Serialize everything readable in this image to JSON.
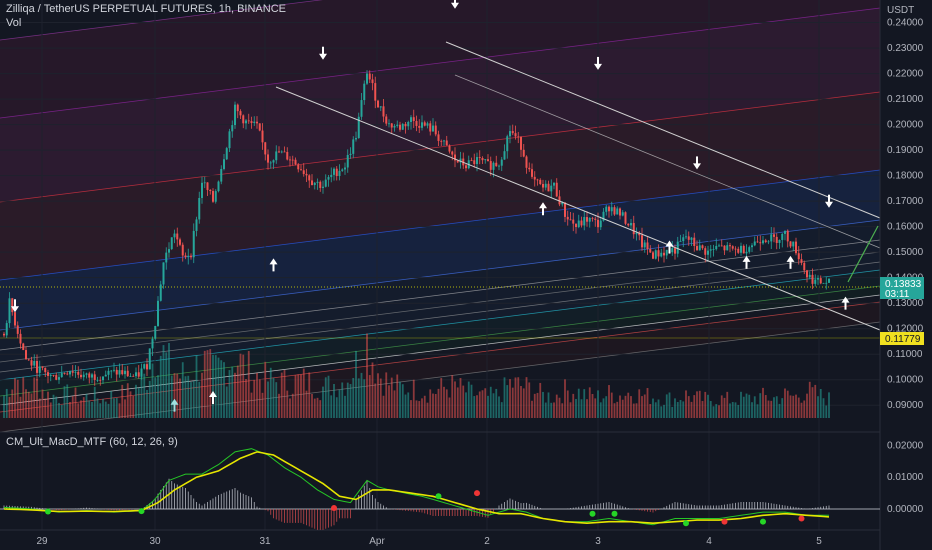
{
  "header": {
    "title": "Zilliqa / TetherUS PERPETUAL FUTURES, 1h, BINANCE",
    "vol_label": "Vol",
    "indicator_label": "CM_Ult_MacD_MTF (60, 12, 26, 9)"
  },
  "price_axis": {
    "currency": "USDT",
    "ticks": [
      "0.24000",
      "0.23000",
      "0.22000",
      "0.21000",
      "0.20000",
      "0.19000",
      "0.18000",
      "0.17000",
      "0.16000",
      "0.15000",
      "0.14000",
      "0.13000",
      "0.12000",
      "0.11000",
      "0.10000",
      "0.09000"
    ],
    "current_price": "0.13833",
    "countdown": "03:11",
    "marked_price": "0.11779"
  },
  "macd_axis": {
    "ticks": [
      "0.02000",
      "0.01000",
      "0.00000"
    ]
  },
  "time_axis": {
    "labels": [
      "29",
      "30",
      "31",
      "Apr",
      "2",
      "3",
      "4",
      "5"
    ]
  },
  "colors": {
    "background": "#131722",
    "up": "#26a69a",
    "down": "#ef5350",
    "macd": "#26c626",
    "signal": "#e6e600",
    "current_price_bg": "#26a69a",
    "marked_price_bg": "#f0e020"
  },
  "chart_data": {
    "type": "candlestick",
    "x_labels": [
      "29",
      "30",
      "31",
      "Apr",
      "2",
      "3",
      "4",
      "5"
    ],
    "y_range": [
      0.085,
      0.241
    ],
    "price_path": [
      [
        0,
        0.118
      ],
      [
        2,
        0.13
      ],
      [
        8,
        0.108
      ],
      [
        14,
        0.103
      ],
      [
        18,
        0.101
      ],
      [
        24,
        0.104
      ],
      [
        30,
        0.101
      ],
      [
        36,
        0.102
      ],
      [
        42,
        0.103
      ],
      [
        48,
        0.101
      ],
      [
        52,
        0.106
      ],
      [
        55,
        0.123
      ],
      [
        58,
        0.146
      ],
      [
        62,
        0.158
      ],
      [
        65,
        0.148
      ],
      [
        68,
        0.15
      ],
      [
        72,
        0.178
      ],
      [
        76,
        0.17
      ],
      [
        80,
        0.188
      ],
      [
        84,
        0.206
      ],
      [
        88,
        0.201
      ],
      [
        92,
        0.199
      ],
      [
        96,
        0.186
      ],
      [
        100,
        0.189
      ],
      [
        104,
        0.187
      ],
      [
        108,
        0.183
      ],
      [
        112,
        0.178
      ],
      [
        116,
        0.176
      ],
      [
        120,
        0.181
      ],
      [
        124,
        0.184
      ],
      [
        128,
        0.196
      ],
      [
        132,
        0.221
      ],
      [
        136,
        0.208
      ],
      [
        140,
        0.2
      ],
      [
        144,
        0.199
      ],
      [
        148,
        0.202
      ],
      [
        152,
        0.2
      ],
      [
        156,
        0.198
      ],
      [
        160,
        0.192
      ],
      [
        164,
        0.186
      ],
      [
        168,
        0.184
      ],
      [
        172,
        0.186
      ],
      [
        176,
        0.184
      ],
      [
        180,
        0.185
      ],
      [
        184,
        0.198
      ],
      [
        188,
        0.192
      ],
      [
        192,
        0.178
      ],
      [
        196,
        0.175
      ],
      [
        200,
        0.176
      ],
      [
        204,
        0.165
      ],
      [
        208,
        0.16
      ],
      [
        212,
        0.163
      ],
      [
        216,
        0.161
      ],
      [
        220,
        0.168
      ],
      [
        224,
        0.165
      ],
      [
        228,
        0.16
      ],
      [
        232,
        0.153
      ],
      [
        236,
        0.149
      ],
      [
        240,
        0.15
      ],
      [
        244,
        0.151
      ],
      [
        248,
        0.156
      ],
      [
        252,
        0.152
      ],
      [
        256,
        0.15
      ],
      [
        260,
        0.152
      ],
      [
        264,
        0.151
      ],
      [
        268,
        0.151
      ],
      [
        272,
        0.153
      ],
      [
        276,
        0.156
      ],
      [
        280,
        0.155
      ],
      [
        284,
        0.157
      ],
      [
        288,
        0.151
      ],
      [
        292,
        0.141
      ],
      [
        296,
        0.138
      ],
      [
        300,
        0.13833
      ]
    ],
    "volume_path": [
      [
        0,
        0.3
      ],
      [
        4,
        0.55
      ],
      [
        8,
        0.35
      ],
      [
        12,
        0.45
      ],
      [
        16,
        0.3
      ],
      [
        20,
        0.28
      ],
      [
        24,
        0.32
      ],
      [
        28,
        0.25
      ],
      [
        32,
        0.3
      ],
      [
        36,
        0.24
      ],
      [
        40,
        0.3
      ],
      [
        44,
        0.32
      ],
      [
        48,
        0.4
      ],
      [
        52,
        0.55
      ],
      [
        56,
        0.95
      ],
      [
        60,
        0.7
      ],
      [
        64,
        0.55
      ],
      [
        68,
        0.6
      ],
      [
        72,
        0.75
      ],
      [
        76,
        0.6
      ],
      [
        80,
        0.7
      ],
      [
        84,
        0.8
      ],
      [
        88,
        0.65
      ],
      [
        92,
        0.55
      ],
      [
        96,
        0.5
      ],
      [
        100,
        0.48
      ],
      [
        104,
        0.45
      ],
      [
        108,
        0.5
      ],
      [
        112,
        0.45
      ],
      [
        116,
        0.4
      ],
      [
        120,
        0.45
      ],
      [
        124,
        0.48
      ],
      [
        128,
        0.7
      ],
      [
        132,
        1.0
      ],
      [
        136,
        0.6
      ],
      [
        140,
        0.45
      ],
      [
        144,
        0.4
      ],
      [
        148,
        0.38
      ],
      [
        152,
        0.36
      ],
      [
        156,
        0.34
      ],
      [
        160,
        0.4
      ],
      [
        164,
        0.42
      ],
      [
        168,
        0.35
      ],
      [
        172,
        0.3
      ],
      [
        176,
        0.28
      ],
      [
        180,
        0.3
      ],
      [
        184,
        0.45
      ],
      [
        188,
        0.42
      ],
      [
        192,
        0.38
      ],
      [
        196,
        0.3
      ],
      [
        200,
        0.28
      ],
      [
        204,
        0.36
      ],
      [
        208,
        0.35
      ],
      [
        212,
        0.3
      ],
      [
        216,
        0.28
      ],
      [
        220,
        0.32
      ],
      [
        224,
        0.3
      ],
      [
        228,
        0.34
      ],
      [
        232,
        0.3
      ],
      [
        236,
        0.28
      ],
      [
        240,
        0.26
      ],
      [
        244,
        0.25
      ],
      [
        248,
        0.3
      ],
      [
        252,
        0.26
      ],
      [
        256,
        0.24
      ],
      [
        260,
        0.25
      ],
      [
        264,
        0.24
      ],
      [
        268,
        0.25
      ],
      [
        272,
        0.26
      ],
      [
        276,
        0.28
      ],
      [
        280,
        0.26
      ],
      [
        284,
        0.3
      ],
      [
        288,
        0.28
      ],
      [
        292,
        0.36
      ],
      [
        296,
        0.3
      ],
      [
        300,
        0.25
      ]
    ],
    "macd_range": [
      -0.006,
      0.023
    ],
    "macd_line": [
      [
        0,
        0.0005
      ],
      [
        10,
        0.0
      ],
      [
        20,
        -0.001
      ],
      [
        30,
        -0.0005
      ],
      [
        40,
        -0.001
      ],
      [
        50,
        -0.0005
      ],
      [
        55,
        0.003
      ],
      [
        60,
        0.009
      ],
      [
        66,
        0.011
      ],
      [
        72,
        0.011
      ],
      [
        78,
        0.014
      ],
      [
        84,
        0.018
      ],
      [
        90,
        0.019
      ],
      [
        96,
        0.017
      ],
      [
        102,
        0.013
      ],
      [
        108,
        0.01
      ],
      [
        114,
        0.006
      ],
      [
        120,
        0.003
      ],
      [
        126,
        0.002
      ],
      [
        132,
        0.009
      ],
      [
        136,
        0.007
      ],
      [
        140,
        0.006
      ],
      [
        146,
        0.005
      ],
      [
        152,
        0.004
      ],
      [
        160,
        0.002
      ],
      [
        168,
        0.0
      ],
      [
        176,
        -0.002
      ],
      [
        184,
        0.0
      ],
      [
        190,
        -0.001
      ],
      [
        196,
        -0.003
      ],
      [
        204,
        -0.004
      ],
      [
        212,
        -0.004
      ],
      [
        220,
        -0.003
      ],
      [
        228,
        -0.004
      ],
      [
        236,
        -0.005
      ],
      [
        244,
        -0.003
      ],
      [
        252,
        -0.003
      ],
      [
        260,
        -0.003
      ],
      [
        268,
        -0.002
      ],
      [
        276,
        -0.001
      ],
      [
        284,
        -0.001
      ],
      [
        292,
        -0.002
      ],
      [
        300,
        -0.002
      ]
    ],
    "signal_line": [
      [
        0,
        0.0
      ],
      [
        10,
        -0.0003
      ],
      [
        20,
        -0.0008
      ],
      [
        30,
        -0.0007
      ],
      [
        40,
        -0.0008
      ],
      [
        50,
        -0.0005
      ],
      [
        56,
        0.002
      ],
      [
        62,
        0.006
      ],
      [
        70,
        0.01
      ],
      [
        78,
        0.012
      ],
      [
        86,
        0.016
      ],
      [
        92,
        0.018
      ],
      [
        98,
        0.017
      ],
      [
        104,
        0.014
      ],
      [
        110,
        0.011
      ],
      [
        116,
        0.008
      ],
      [
        122,
        0.004
      ],
      [
        128,
        0.003
      ],
      [
        134,
        0.006
      ],
      [
        140,
        0.006
      ],
      [
        148,
        0.005
      ],
      [
        156,
        0.004
      ],
      [
        164,
        0.002
      ],
      [
        172,
        0.0
      ],
      [
        180,
        -0.0015
      ],
      [
        188,
        -0.0015
      ],
      [
        196,
        -0.003
      ],
      [
        204,
        -0.004
      ],
      [
        212,
        -0.0045
      ],
      [
        220,
        -0.004
      ],
      [
        228,
        -0.004
      ],
      [
        236,
        -0.0045
      ],
      [
        244,
        -0.004
      ],
      [
        252,
        -0.0035
      ],
      [
        260,
        -0.0035
      ],
      [
        268,
        -0.003
      ],
      [
        276,
        -0.002
      ],
      [
        284,
        -0.0015
      ],
      [
        292,
        -0.002
      ],
      [
        300,
        -0.0025
      ]
    ],
    "cross_markers": [
      {
        "i": 16,
        "v": -0.0008,
        "c": "up"
      },
      {
        "i": 50,
        "v": -0.0007,
        "c": "up"
      },
      {
        "i": 120,
        "v": 0.0003,
        "c": "down"
      },
      {
        "i": 158,
        "v": 0.004,
        "c": "up"
      },
      {
        "i": 172,
        "v": 0.005,
        "c": "down"
      },
      {
        "i": 214,
        "v": -0.0015,
        "c": "up"
      },
      {
        "i": 222,
        "v": -0.0015,
        "c": "up"
      },
      {
        "i": 248,
        "v": -0.0045,
        "c": "up"
      },
      {
        "i": 262,
        "v": -0.004,
        "c": "down"
      },
      {
        "i": 276,
        "v": -0.004,
        "c": "up"
      },
      {
        "i": 290,
        "v": -0.003,
        "c": "down"
      }
    ],
    "arrows": [
      {
        "i": 4,
        "p": 0.128,
        "dir": "down"
      },
      {
        "i": 62,
        "p": 0.091,
        "dir": "up"
      },
      {
        "i": 76,
        "p": 0.094,
        "dir": "up"
      },
      {
        "i": 98,
        "p": 0.146,
        "dir": "up"
      },
      {
        "i": 116,
        "p": 0.227,
        "dir": "down"
      },
      {
        "i": 164,
        "p": 0.247,
        "dir": "down"
      },
      {
        "i": 196,
        "p": 0.168,
        "dir": "up"
      },
      {
        "i": 216,
        "p": 0.223,
        "dir": "down"
      },
      {
        "i": 242,
        "p": 0.153,
        "dir": "up"
      },
      {
        "i": 252,
        "p": 0.184,
        "dir": "down"
      },
      {
        "i": 270,
        "p": 0.147,
        "dir": "up"
      },
      {
        "i": 286,
        "p": 0.147,
        "dir": "up"
      },
      {
        "i": 300,
        "p": 0.169,
        "dir": "down"
      },
      {
        "i": 306,
        "p": 0.131,
        "dir": "up"
      }
    ]
  }
}
